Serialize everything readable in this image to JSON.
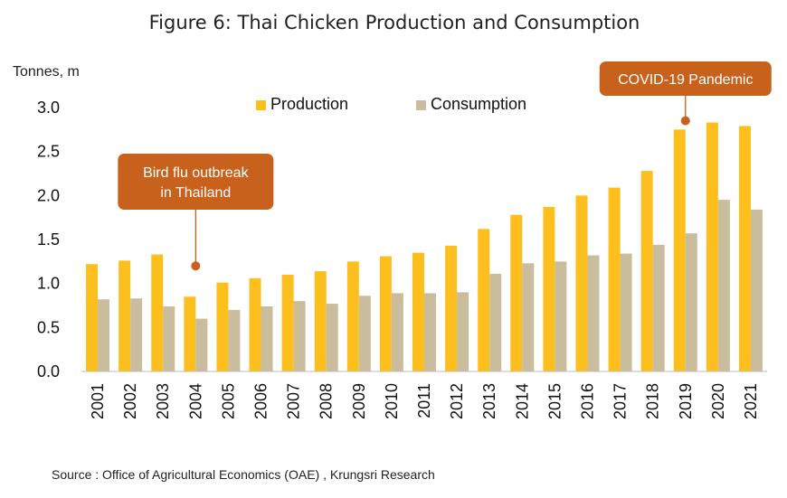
{
  "chart_data": {
    "type": "bar",
    "title": "Figure 6: Thai Chicken Production and Consumption",
    "ylabel": "Tonnes, m",
    "xlabel": "",
    "ylim": [
      0,
      3.0
    ],
    "yticks": [
      "0.0",
      "0.5",
      "1.0",
      "1.5",
      "2.0",
      "2.5",
      "3.0"
    ],
    "grid": false,
    "legend": "top",
    "categories": [
      "2001",
      "2002",
      "2003",
      "2004",
      "2005",
      "2006",
      "2007",
      "2008",
      "2009",
      "2010",
      "2011",
      "2012",
      "2013",
      "2014",
      "2015",
      "2016",
      "2017",
      "2018",
      "2019",
      "2020",
      "2021"
    ],
    "series": [
      {
        "name": "Production",
        "color": "#FDBF1D",
        "values": [
          1.22,
          1.26,
          1.33,
          0.85,
          1.01,
          1.06,
          1.1,
          1.14,
          1.25,
          1.31,
          1.35,
          1.43,
          1.62,
          1.78,
          1.87,
          2.0,
          2.09,
          2.28,
          2.75,
          2.83,
          2.79
        ]
      },
      {
        "name": "Consumption",
        "color": "#C9BD9E",
        "values": [
          0.82,
          0.83,
          0.74,
          0.6,
          0.7,
          0.74,
          0.8,
          0.77,
          0.86,
          0.89,
          0.89,
          0.9,
          1.11,
          1.23,
          1.25,
          1.32,
          1.34,
          1.44,
          1.57,
          1.95,
          1.84
        ]
      }
    ],
    "annotations": [
      {
        "lines": [
          "Bird flu outbreak",
          "in Thailand"
        ],
        "category": "2004",
        "value": 1.2,
        "color": "#C8611C"
      },
      {
        "lines": [
          "COVID-19 Pandemic"
        ],
        "category": "2019",
        "value": 2.85,
        "color": "#C8611C"
      }
    ],
    "source": "Source : Office of Agricultural Economics (OAE) , Krungsri Research"
  }
}
